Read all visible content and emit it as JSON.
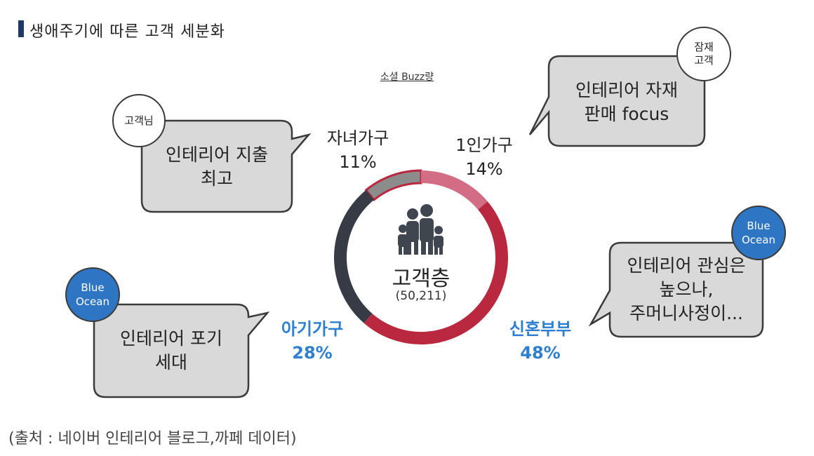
{
  "header": {
    "title": "생애주기에 따른 고객 세분화"
  },
  "chart_label": "소셜 Buzz량",
  "center": {
    "title": "고객층",
    "count": "(50,211)"
  },
  "segments": [
    {
      "name": "자녀가구",
      "pct": "11%"
    },
    {
      "name": "1인가구",
      "pct": "14%"
    },
    {
      "name": "신혼부부",
      "pct": "48%"
    },
    {
      "name": "아기가구",
      "pct": "28%"
    }
  ],
  "bubbles": {
    "children": {
      "tag": "고객님",
      "line1": "인테리어 지출",
      "line2": "최고"
    },
    "single": {
      "tag_line1": "잠재",
      "tag_line2": "고객",
      "line1": "인테리어 자재",
      "line2": "판매 focus"
    },
    "newlywed": {
      "tag_line1": "Blue",
      "tag_line2": "Ocean",
      "line1": "인테리어 관심은",
      "line2": "높으나,",
      "line3": "주머니사정이..."
    },
    "baby": {
      "tag_line1": "Blue",
      "tag_line2": "Ocean",
      "line1": "인테리어 포기",
      "line2": "세대"
    }
  },
  "footnote": "(출처 : 네이버 인테리어 블로그,까페 데이터)",
  "colors": {
    "children": "#8c8c8c",
    "single": "#d36d86",
    "newlywed": "#b9283e",
    "baby": "#363b45",
    "bubble_fill": "#d9d9d9",
    "blue_ocean": "#2e75c3",
    "title_bar": "#1f3864"
  },
  "chart_data": {
    "type": "pie",
    "title": "",
    "categories": [
      "자녀가구",
      "1인가구",
      "신혼부부",
      "아기가구"
    ],
    "values": [
      11,
      14,
      48,
      28
    ],
    "center_label": "고객층",
    "total": 50211
  }
}
